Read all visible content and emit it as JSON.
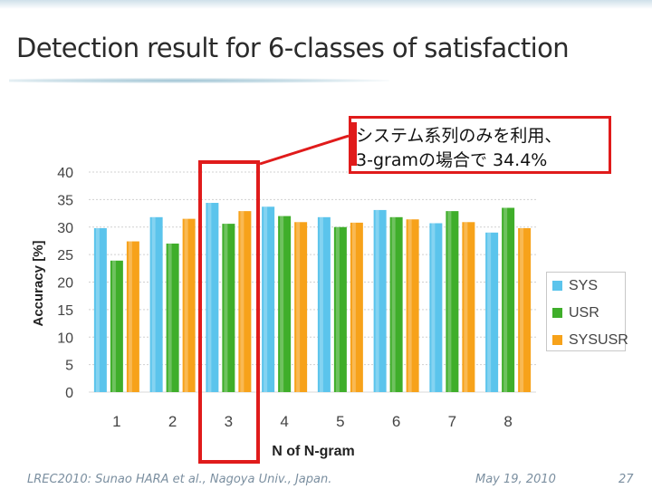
{
  "slide": {
    "title": "Detection result for 6-classes of satisfaction",
    "callout_line1": "システム系列のみを利用、",
    "callout_line2": "3-gramの場合で 34.4%",
    "footer_left": "LREC2010: Sunao HARA et al., Nagoya Univ., Japan.",
    "footer_date": "May 19, 2010",
    "page_number": "27"
  },
  "chart_data": {
    "type": "bar",
    "xlabel": "N of N-gram",
    "ylabel": "Accuracy [%]",
    "categories": [
      "1",
      "2",
      "3",
      "4",
      "5",
      "6",
      "7",
      "8"
    ],
    "ylim": [
      0,
      40
    ],
    "yticks": [
      0,
      5,
      10,
      15,
      20,
      25,
      30,
      35,
      40
    ],
    "grid": true,
    "legend_position": "right",
    "highlight_category": "3",
    "series": [
      {
        "name": "SYS",
        "color": "#5bc4ec",
        "values": [
          29.8,
          31.8,
          34.4,
          33.7,
          31.8,
          33.1,
          30.7,
          29.0
        ]
      },
      {
        "name": "USR",
        "color": "#3fae2a",
        "values": [
          23.9,
          27.0,
          30.6,
          32.0,
          30.0,
          31.8,
          32.9,
          33.5
        ]
      },
      {
        "name": "SYSUSR",
        "color": "#f7a21a",
        "values": [
          27.4,
          31.5,
          32.9,
          30.9,
          30.8,
          31.4,
          30.9,
          29.8
        ]
      }
    ]
  }
}
